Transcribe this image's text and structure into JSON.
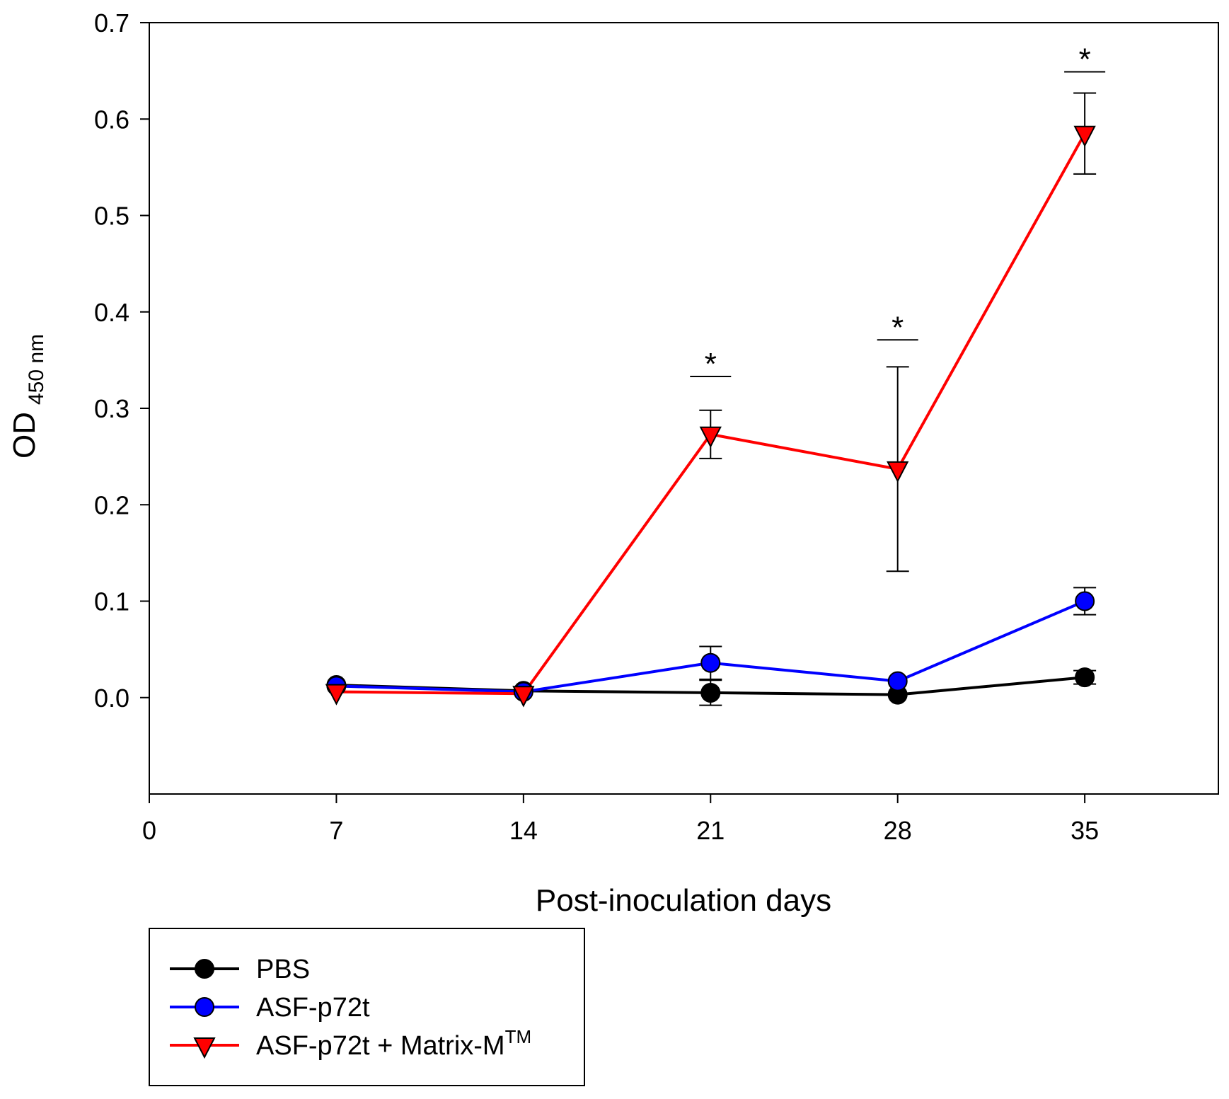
{
  "chart_data": {
    "type": "line",
    "title": "",
    "xlabel": "Post-inoculation days",
    "ylabel": "OD",
    "ylabel_subscript": "450 nm",
    "xlim": [
      0,
      40
    ],
    "ylim": [
      -0.1,
      0.7
    ],
    "x_ticks": [
      0,
      7,
      14,
      21,
      28,
      35
    ],
    "x_tick_labels": [
      "0",
      "7",
      "14",
      "21",
      "28",
      "35"
    ],
    "y_ticks": [
      0.0,
      0.1,
      0.2,
      0.3,
      0.4,
      0.5,
      0.6,
      0.7
    ],
    "y_tick_labels": [
      "0.0",
      "0.1",
      "0.2",
      "0.3",
      "0.4",
      "0.5",
      "0.6",
      "0.7"
    ],
    "grid": false,
    "legend_position": "bottom-left",
    "x": [
      7,
      14,
      21,
      28,
      35
    ],
    "series": [
      {
        "name": "PBS",
        "color": "#000000",
        "marker": "circle",
        "values": [
          0.013,
          0.007,
          0.005,
          0.003,
          0.021
        ],
        "errors": [
          0.0,
          0.0,
          0.013,
          0.0,
          0.007
        ]
      },
      {
        "name": "ASF-p72t",
        "color": "#0000ff",
        "marker": "circle",
        "values": [
          0.012,
          0.006,
          0.036,
          0.017,
          0.1
        ],
        "errors": [
          0.0,
          0.0,
          0.017,
          0.0,
          0.014
        ]
      },
      {
        "name": "ASF-p72t + Matrix-M",
        "superscript": "TM",
        "color": "#ff0000",
        "marker": "triangle-down",
        "values": [
          0.006,
          0.004,
          0.273,
          0.237,
          0.585
        ],
        "errors": [
          0.0,
          0.0,
          0.025,
          0.106,
          0.042
        ]
      }
    ],
    "annotations": [
      {
        "text": "*",
        "x": 21,
        "y": 0.333
      },
      {
        "text": "*",
        "x": 28,
        "y": 0.371
      },
      {
        "text": "*",
        "x": 35,
        "y": 0.649
      }
    ]
  }
}
